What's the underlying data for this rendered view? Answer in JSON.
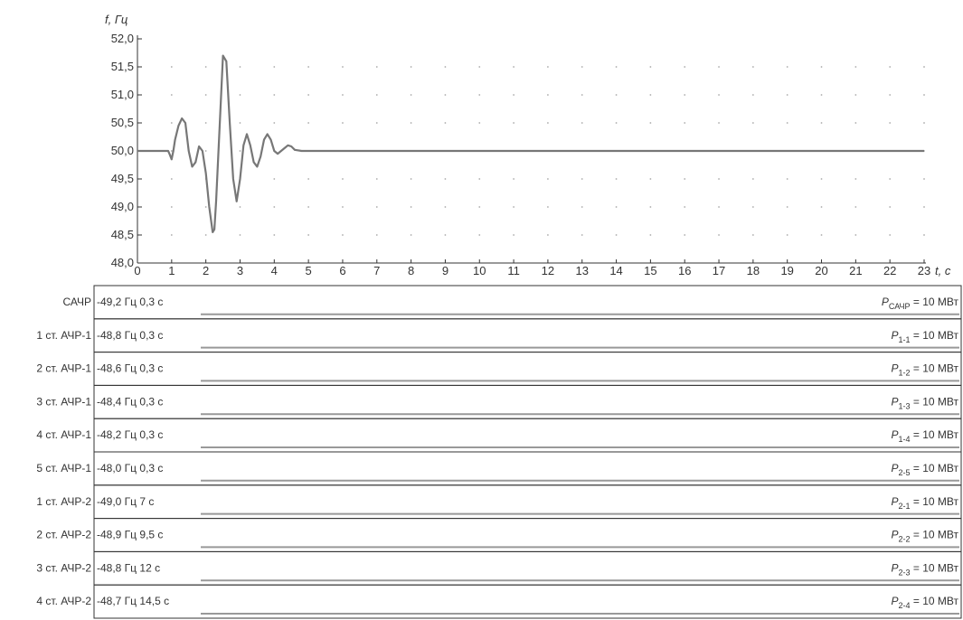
{
  "chart_data": {
    "type": "line",
    "title": "",
    "ylabel": "f, Гц",
    "xlabel": "t, c",
    "ylim": [
      48.0,
      52.0
    ],
    "xlim": [
      0,
      23
    ],
    "y_ticks": [
      "48,0",
      "48,5",
      "49,0",
      "49,5",
      "50,0",
      "50,5",
      "51,0",
      "51,5",
      "52,0"
    ],
    "y_tick_values": [
      48.0,
      48.5,
      49.0,
      49.5,
      50.0,
      50.5,
      51.0,
      51.5,
      52.0
    ],
    "x_ticks": [
      "0",
      "1",
      "2",
      "3",
      "4",
      "5",
      "6",
      "7",
      "8",
      "9",
      "10",
      "11",
      "12",
      "13",
      "14",
      "15",
      "16",
      "17",
      "18",
      "19",
      "20",
      "21",
      "22",
      "23"
    ],
    "grid": "dotted",
    "series": [
      {
        "x": [
          0,
          0.9,
          0.95,
          1.0,
          1.05,
          1.1,
          1.2,
          1.3,
          1.4,
          1.5,
          1.6,
          1.7,
          1.8,
          1.9,
          2.0,
          2.1,
          2.2,
          2.25,
          2.3,
          2.4,
          2.5,
          2.6,
          2.7,
          2.8,
          2.9,
          3.0,
          3.1,
          3.2,
          3.3,
          3.4,
          3.5,
          3.6,
          3.7,
          3.8,
          3.9,
          4.0,
          4.1,
          4.2,
          4.3,
          4.4,
          4.5,
          4.6,
          4.8,
          5.0,
          6.0,
          10,
          15,
          20,
          23
        ],
        "y": [
          50.0,
          50.0,
          49.93,
          49.85,
          50.0,
          50.2,
          50.45,
          50.58,
          50.5,
          50.0,
          49.72,
          49.8,
          50.08,
          50.0,
          49.6,
          49.0,
          48.55,
          48.6,
          49.1,
          50.4,
          51.7,
          51.6,
          50.5,
          49.5,
          49.1,
          49.5,
          50.1,
          50.3,
          50.1,
          49.8,
          49.72,
          49.9,
          50.2,
          50.3,
          50.2,
          50.0,
          49.95,
          50.0,
          50.05,
          50.1,
          50.08,
          50.02,
          50.0,
          50.0,
          50.0,
          50.0,
          50.0,
          50.0,
          50.0
        ]
      }
    ],
    "rows": [
      {
        "label": "САЧР",
        "setting": "-49,2 Гц 0,3 с",
        "power_main": "P",
        "power_sub": "САЧР",
        "power_value": "= 10 МВт"
      },
      {
        "label": "1 ст. АЧР-1",
        "setting": "-48,8 Гц 0,3 с",
        "power_main": "P",
        "power_sub": "1-1",
        "power_value": "= 10 МВт"
      },
      {
        "label": "2 ст. АЧР-1",
        "setting": "-48,6 Гц 0,3 с",
        "power_main": "P",
        "power_sub": "1-2",
        "power_value": "= 10 МВт"
      },
      {
        "label": "3 ст. АЧР-1",
        "setting": "-48,4 Гц 0,3 с",
        "power_main": "P",
        "power_sub": "1-3",
        "power_value": "= 10 МВт"
      },
      {
        "label": "4 ст. АЧР-1",
        "setting": "-48,2 Гц 0,3 с",
        "power_main": "P",
        "power_sub": "1-4",
        "power_value": "= 10 МВт"
      },
      {
        "label": "5 ст. АЧР-1",
        "setting": "-48,0 Гц 0,3 с",
        "power_main": "P",
        "power_sub": "2-5",
        "power_value": "= 10 МВт"
      },
      {
        "label": "1 ст. АЧР-2",
        "setting": "-49,0 Гц 7 с",
        "power_main": "P",
        "power_sub": "2-1",
        "power_value": "= 10 МВт"
      },
      {
        "label": "2 ст. АЧР-2",
        "setting": "-48,9 Гц 9,5 с",
        "power_main": "P",
        "power_sub": "2-2",
        "power_value": "= 10 МВт"
      },
      {
        "label": "3 ст. АЧР-2",
        "setting": "-48,8 Гц 12 с",
        "power_main": "P",
        "power_sub": "2-3",
        "power_value": "= 10 МВт"
      },
      {
        "label": "4 ст. АЧР-2",
        "setting": "-48,7 Гц 14,5 с",
        "power_main": "P",
        "power_sub": "2-4",
        "power_value": "= 10 МВт"
      }
    ]
  },
  "colors": {
    "line": "#777777",
    "axis": "#333333",
    "grid": "#aaaaaa",
    "row_line": "#999999"
  }
}
